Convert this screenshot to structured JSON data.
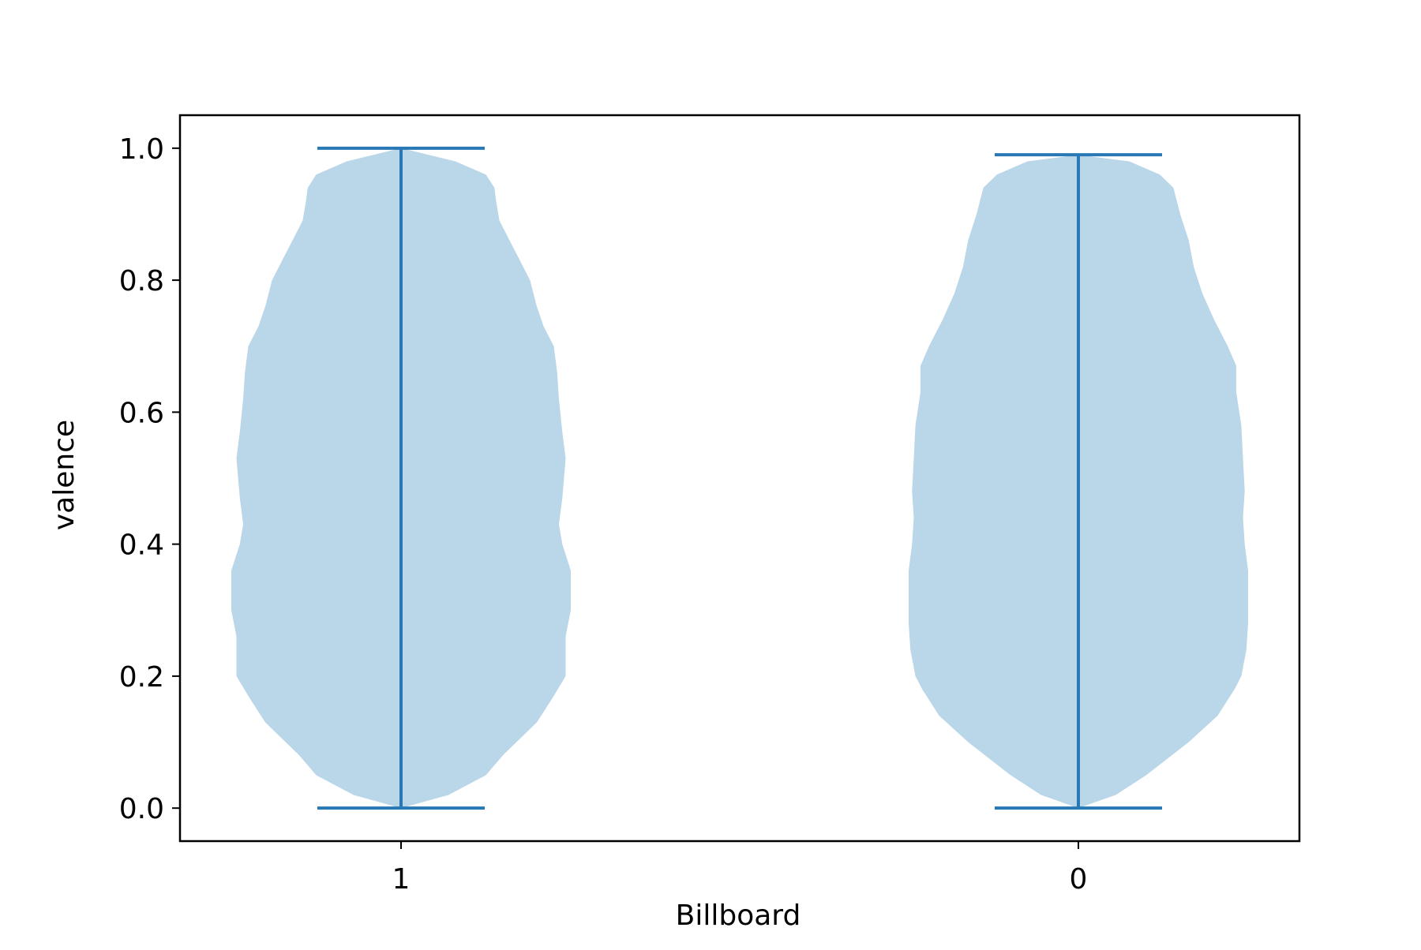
{
  "chart_data": {
    "type": "violin",
    "title": "",
    "xlabel": "Billboard",
    "ylabel": "valence",
    "categories": [
      "1",
      "0"
    ],
    "ylim": [
      -0.05,
      1.05
    ],
    "yticks": [
      0.0,
      0.2,
      0.4,
      0.6,
      0.8,
      1.0
    ],
    "ytick_labels": [
      "0.0",
      "0.2",
      "0.4",
      "0.6",
      "0.8",
      "1.0"
    ],
    "grid": false,
    "colors": {
      "body": "#bad6e9",
      "line": "#2878b5",
      "axes": "#000000"
    },
    "violins": [
      {
        "category": "1",
        "min": 0.0,
        "max": 1.0,
        "density": [
          [
            0.0,
            0.0
          ],
          [
            0.02,
            0.28
          ],
          [
            0.05,
            0.5
          ],
          [
            0.08,
            0.6
          ],
          [
            0.1,
            0.68
          ],
          [
            0.13,
            0.8
          ],
          [
            0.17,
            0.9
          ],
          [
            0.2,
            0.97
          ],
          [
            0.23,
            0.97
          ],
          [
            0.26,
            0.97
          ],
          [
            0.3,
            1.0
          ],
          [
            0.36,
            1.0
          ],
          [
            0.4,
            0.95
          ],
          [
            0.43,
            0.93
          ],
          [
            0.47,
            0.95
          ],
          [
            0.53,
            0.97
          ],
          [
            0.57,
            0.95
          ],
          [
            0.62,
            0.93
          ],
          [
            0.66,
            0.92
          ],
          [
            0.7,
            0.9
          ],
          [
            0.73,
            0.84
          ],
          [
            0.76,
            0.8
          ],
          [
            0.8,
            0.76
          ],
          [
            0.85,
            0.66
          ],
          [
            0.89,
            0.58
          ],
          [
            0.92,
            0.56
          ],
          [
            0.94,
            0.55
          ],
          [
            0.96,
            0.5
          ],
          [
            0.98,
            0.32
          ],
          [
            1.0,
            0.0
          ]
        ]
      },
      {
        "category": "0",
        "min": 0.0,
        "max": 0.99,
        "density": [
          [
            0.0,
            0.0
          ],
          [
            0.02,
            0.22
          ],
          [
            0.05,
            0.4
          ],
          [
            0.08,
            0.55
          ],
          [
            0.1,
            0.65
          ],
          [
            0.14,
            0.82
          ],
          [
            0.18,
            0.92
          ],
          [
            0.2,
            0.96
          ],
          [
            0.24,
            0.99
          ],
          [
            0.28,
            1.0
          ],
          [
            0.32,
            1.0
          ],
          [
            0.36,
            1.0
          ],
          [
            0.4,
            0.98
          ],
          [
            0.44,
            0.97
          ],
          [
            0.48,
            0.98
          ],
          [
            0.53,
            0.97
          ],
          [
            0.58,
            0.96
          ],
          [
            0.63,
            0.93
          ],
          [
            0.67,
            0.93
          ],
          [
            0.7,
            0.88
          ],
          [
            0.74,
            0.8
          ],
          [
            0.78,
            0.73
          ],
          [
            0.82,
            0.68
          ],
          [
            0.86,
            0.65
          ],
          [
            0.9,
            0.6
          ],
          [
            0.94,
            0.56
          ],
          [
            0.96,
            0.48
          ],
          [
            0.98,
            0.3
          ],
          [
            0.99,
            0.0
          ]
        ]
      }
    ]
  }
}
